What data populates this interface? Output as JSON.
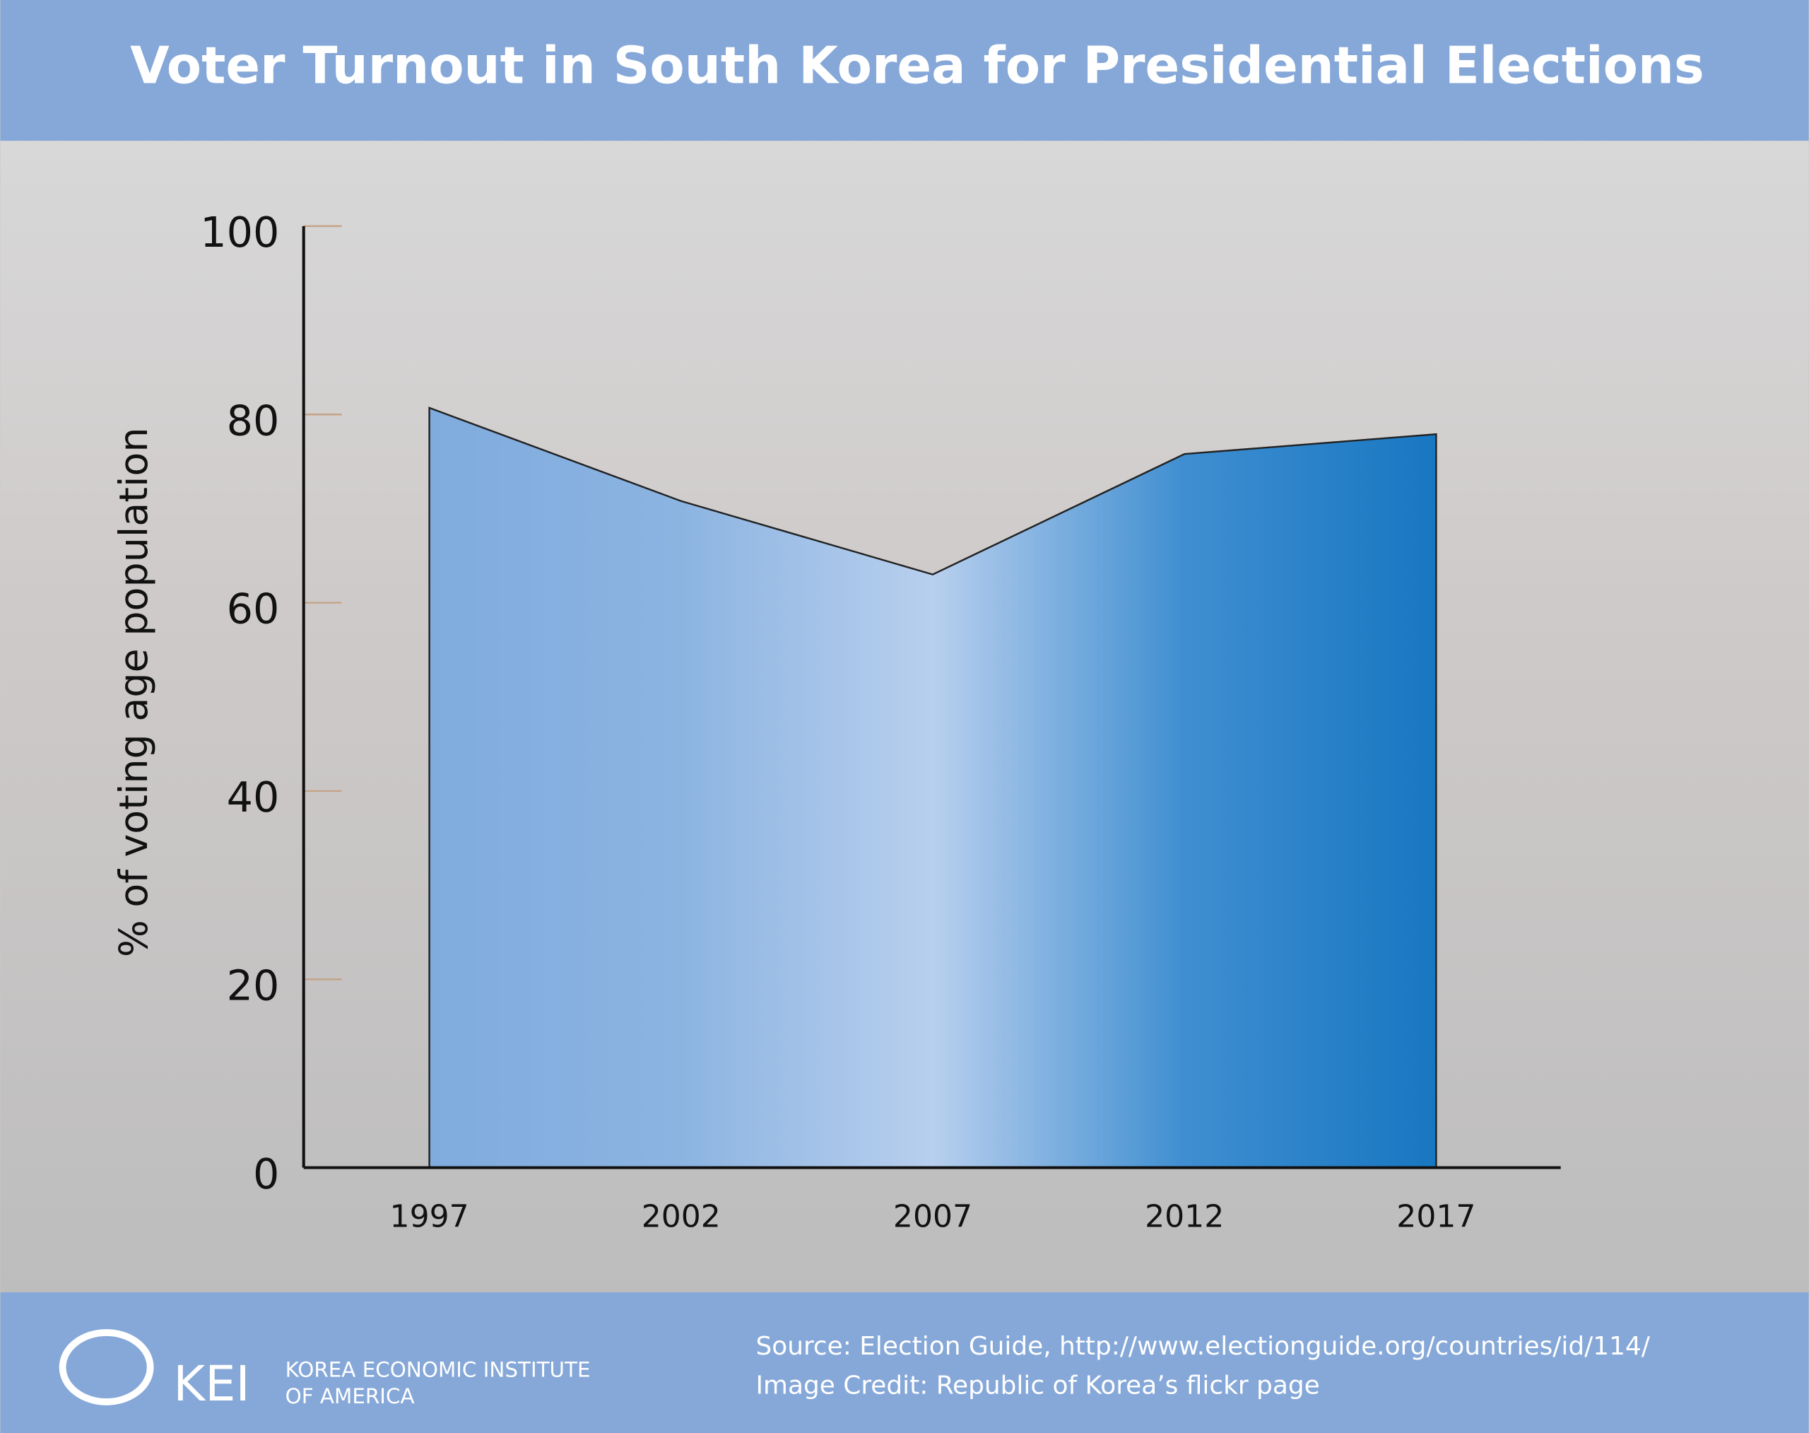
{
  "chart_data": {
    "type": "area",
    "title": "Voter Turnout in South Korea for Presidential Elections",
    "y_label": "% of voting age population",
    "categories": [
      "1997",
      "2002",
      "2007",
      "2012",
      "2017"
    ],
    "values": [
      80.7,
      70.8,
      63.0,
      75.8,
      77.9
    ],
    "colors": [
      "#7fabde",
      "#8cb4e1",
      "#b8cfee",
      "#3f8ed1",
      "#1877c1"
    ],
    "ylim": [
      0,
      100
    ],
    "yticks": [
      0,
      20,
      40,
      60,
      80,
      100
    ]
  },
  "footer": {
    "logo": "KEI",
    "org_line1": "KOREA ECONOMIC INSTITUTE",
    "org_line2": "OF AMERICA",
    "source": "Source: Election Guide, http://www.electionguide.org/countries/id/114/",
    "credit": "Image Credit: Republic of Korea’s flickr page"
  }
}
